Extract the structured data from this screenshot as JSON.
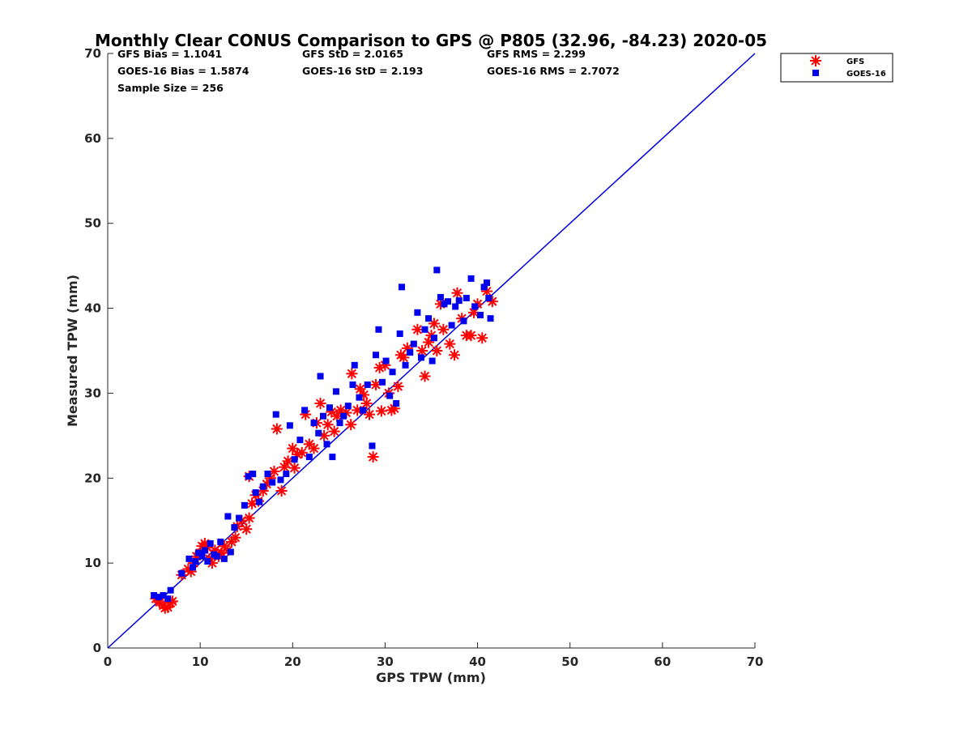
{
  "chart_data": {
    "type": "scatter",
    "title": "Monthly Clear CONUS Comparison to GPS @ P805 (32.96, -84.23) 2020-05",
    "xlabel": "GPS TPW (mm)",
    "ylabel": "Measured TPW (mm)",
    "xlim": [
      0,
      70
    ],
    "ylim": [
      0,
      70
    ],
    "xticks": [
      "0",
      "10",
      "20",
      "30",
      "40",
      "50",
      "60",
      "70"
    ],
    "yticks": [
      "0",
      "10",
      "20",
      "30",
      "40",
      "50",
      "60",
      "70"
    ],
    "grid": false,
    "legend_position": "top-right outside",
    "stats": {
      "gfs_bias": "GFS Bias = 1.1041",
      "gfs_std": "GFS StD = 2.0165",
      "gfs_rms": "GFS RMS = 2.299",
      "goes_bias": "GOES-16 Bias = 1.5874",
      "goes_std": "GOES-16 StD = 2.193",
      "goes_rms": "GOES-16 RMS = 2.7072",
      "sample_size": "Sample Size = 256"
    },
    "reference_line": {
      "x": [
        0,
        70
      ],
      "y": [
        0,
        70
      ],
      "color": "#0000dd"
    },
    "series": [
      {
        "name": "GFS",
        "marker": "asterisk",
        "color": "#ff0000",
        "points": [
          [
            5.2,
            5.8
          ],
          [
            5.6,
            5.4
          ],
          [
            6.0,
            5.0
          ],
          [
            6.2,
            4.7
          ],
          [
            6.5,
            4.8
          ],
          [
            6.8,
            5.3
          ],
          [
            7.0,
            5.5
          ],
          [
            8.0,
            8.6
          ],
          [
            8.7,
            9.3
          ],
          [
            9.0,
            9.0
          ],
          [
            9.3,
            10.0
          ],
          [
            9.6,
            10.8
          ],
          [
            10.0,
            11.2
          ],
          [
            10.2,
            12.0
          ],
          [
            10.5,
            12.3
          ],
          [
            10.8,
            11.8
          ],
          [
            11.0,
            10.5
          ],
          [
            11.3,
            10.0
          ],
          [
            11.6,
            11.5
          ],
          [
            12.0,
            10.8
          ],
          [
            12.3,
            11.2
          ],
          [
            12.6,
            12.0
          ],
          [
            13.0,
            11.5
          ],
          [
            13.4,
            12.5
          ],
          [
            13.8,
            13.0
          ],
          [
            14.0,
            14.3
          ],
          [
            14.5,
            15.0
          ],
          [
            15.0,
            14.0
          ],
          [
            15.3,
            15.3
          ],
          [
            15.6,
            17.0
          ],
          [
            15.3,
            20.2
          ],
          [
            16.0,
            18.0
          ],
          [
            16.3,
            17.3
          ],
          [
            16.8,
            18.5
          ],
          [
            17.2,
            19.3
          ],
          [
            17.6,
            20.0
          ],
          [
            18.0,
            20.8
          ],
          [
            18.3,
            25.8
          ],
          [
            18.8,
            18.5
          ],
          [
            19.1,
            21.3
          ],
          [
            19.5,
            22.0
          ],
          [
            20.0,
            23.5
          ],
          [
            20.2,
            21.2
          ],
          [
            20.5,
            22.8
          ],
          [
            21.0,
            23.0
          ],
          [
            21.4,
            27.5
          ],
          [
            21.8,
            24.0
          ],
          [
            22.3,
            23.5
          ],
          [
            22.6,
            26.5
          ],
          [
            23.0,
            28.8
          ],
          [
            23.4,
            25.0
          ],
          [
            23.8,
            26.3
          ],
          [
            24.2,
            27.8
          ],
          [
            24.5,
            25.5
          ],
          [
            24.8,
            27.3
          ],
          [
            25.2,
            28.0
          ],
          [
            25.8,
            27.7
          ],
          [
            26.3,
            26.3
          ],
          [
            26.4,
            32.3
          ],
          [
            27.0,
            28.0
          ],
          [
            27.3,
            30.5
          ],
          [
            27.7,
            29.8
          ],
          [
            28.0,
            28.8
          ],
          [
            28.3,
            27.5
          ],
          [
            28.7,
            22.5
          ],
          [
            29.0,
            31.0
          ],
          [
            29.4,
            33.0
          ],
          [
            29.6,
            27.9
          ],
          [
            30.0,
            33.3
          ],
          [
            30.4,
            30.0
          ],
          [
            30.7,
            28.0
          ],
          [
            31.0,
            28.2
          ],
          [
            31.4,
            30.8
          ],
          [
            31.7,
            34.5
          ],
          [
            32.0,
            34.2
          ],
          [
            32.4,
            35.3
          ],
          [
            33.5,
            37.5
          ],
          [
            34.0,
            35.0
          ],
          [
            34.3,
            32.0
          ],
          [
            34.7,
            36.0
          ],
          [
            35.0,
            36.8
          ],
          [
            35.3,
            38.2
          ],
          [
            35.6,
            35.0
          ],
          [
            36.0,
            40.5
          ],
          [
            36.3,
            37.5
          ],
          [
            37.0,
            35.8
          ],
          [
            37.5,
            34.5
          ],
          [
            37.8,
            41.8
          ],
          [
            38.3,
            38.8
          ],
          [
            38.8,
            36.8
          ],
          [
            39.3,
            36.8
          ],
          [
            39.6,
            39.5
          ],
          [
            40.0,
            40.5
          ],
          [
            40.5,
            36.5
          ],
          [
            41.0,
            42.0
          ],
          [
            41.6,
            40.8
          ]
        ]
      },
      {
        "name": "GOES-16",
        "marker": "square",
        "color": "#0000ee",
        "points": [
          [
            5.0,
            6.2
          ],
          [
            5.5,
            6.0
          ],
          [
            6.0,
            6.2
          ],
          [
            6.5,
            5.8
          ],
          [
            6.8,
            6.8
          ],
          [
            8.0,
            8.8
          ],
          [
            8.8,
            10.5
          ],
          [
            9.2,
            9.5
          ],
          [
            9.5,
            10.2
          ],
          [
            9.8,
            11.2
          ],
          [
            10.2,
            10.8
          ],
          [
            10.5,
            11.5
          ],
          [
            10.8,
            10.2
          ],
          [
            11.1,
            12.3
          ],
          [
            11.5,
            11.0
          ],
          [
            11.8,
            10.8
          ],
          [
            12.2,
            12.5
          ],
          [
            12.6,
            10.5
          ],
          [
            13.0,
            15.5
          ],
          [
            13.3,
            11.3
          ],
          [
            13.7,
            14.2
          ],
          [
            14.2,
            15.3
          ],
          [
            14.8,
            16.8
          ],
          [
            15.2,
            20.2
          ],
          [
            15.7,
            20.5
          ],
          [
            16.0,
            18.3
          ],
          [
            16.4,
            17.2
          ],
          [
            16.8,
            19.0
          ],
          [
            17.3,
            20.5
          ],
          [
            17.8,
            19.5
          ],
          [
            18.2,
            27.5
          ],
          [
            18.7,
            19.8
          ],
          [
            19.3,
            20.5
          ],
          [
            19.7,
            26.2
          ],
          [
            20.2,
            22.2
          ],
          [
            20.8,
            24.5
          ],
          [
            21.3,
            28.0
          ],
          [
            21.8,
            22.5
          ],
          [
            22.3,
            26.5
          ],
          [
            22.8,
            25.3
          ],
          [
            23.0,
            32.0
          ],
          [
            23.3,
            27.3
          ],
          [
            23.7,
            24.0
          ],
          [
            24.0,
            28.3
          ],
          [
            24.3,
            22.5
          ],
          [
            24.7,
            30.2
          ],
          [
            25.1,
            26.5
          ],
          [
            25.5,
            27.3
          ],
          [
            26.0,
            28.5
          ],
          [
            26.5,
            31.0
          ],
          [
            26.7,
            33.3
          ],
          [
            27.2,
            29.5
          ],
          [
            27.6,
            28.0
          ],
          [
            28.1,
            31.0
          ],
          [
            28.6,
            23.8
          ],
          [
            29.0,
            34.5
          ],
          [
            29.3,
            37.5
          ],
          [
            29.7,
            31.3
          ],
          [
            30.1,
            33.8
          ],
          [
            30.5,
            29.7
          ],
          [
            30.8,
            32.5
          ],
          [
            31.2,
            28.8
          ],
          [
            31.6,
            37.0
          ],
          [
            31.8,
            42.5
          ],
          [
            32.2,
            33.3
          ],
          [
            32.7,
            34.8
          ],
          [
            33.1,
            35.8
          ],
          [
            33.5,
            39.5
          ],
          [
            33.9,
            34.2
          ],
          [
            34.3,
            37.5
          ],
          [
            34.7,
            38.8
          ],
          [
            35.1,
            33.8
          ],
          [
            35.3,
            36.5
          ],
          [
            35.6,
            44.5
          ],
          [
            36.0,
            41.3
          ],
          [
            36.4,
            40.5
          ],
          [
            36.8,
            40.8
          ],
          [
            37.2,
            38.0
          ],
          [
            37.6,
            40.2
          ],
          [
            38.0,
            40.9
          ],
          [
            38.5,
            38.5
          ],
          [
            38.8,
            41.2
          ],
          [
            39.3,
            43.5
          ],
          [
            39.7,
            40.2
          ],
          [
            40.3,
            39.2
          ],
          [
            40.7,
            42.5
          ],
          [
            41.0,
            43.0
          ],
          [
            41.4,
            38.8
          ],
          [
            41.2,
            41.2
          ]
        ]
      }
    ]
  }
}
